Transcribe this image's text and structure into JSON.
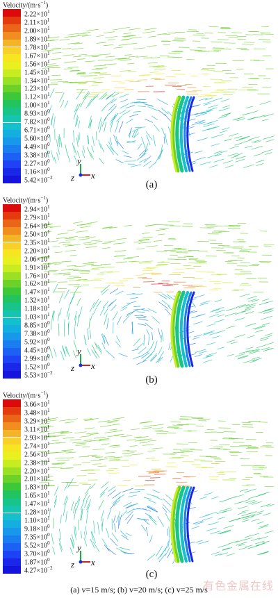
{
  "legend_title": {
    "text": "Velocity/(m·s",
    "sup": "−1",
    "close": ")"
  },
  "colormap": [
    "#dc0a0a",
    "#e43a10",
    "#ea6518",
    "#f08f20",
    "#f4b428",
    "#f8d02a",
    "#f6e622",
    "#e8f020",
    "#c8ec22",
    "#9ae024",
    "#6cd22a",
    "#3cc838",
    "#22c460",
    "#18c48a",
    "#16c4b0",
    "#14c0cc",
    "#14aee0",
    "#1898ea",
    "#1a7ef0",
    "#1c60f4",
    "#1e42f4",
    "#1a26e8",
    "#1414dc"
  ],
  "panels": [
    {
      "label": "(a)",
      "legend": [
        [
          "2.22",
          "1"
        ],
        [
          "2.11",
          "1"
        ],
        [
          "2.00",
          "1"
        ],
        [
          "1.89",
          "1"
        ],
        [
          "1.78",
          "1"
        ],
        [
          "1.67",
          "1"
        ],
        [
          "1.56",
          "1"
        ],
        [
          "1.45",
          "1"
        ],
        [
          "1.34",
          "1"
        ],
        [
          "1.23",
          "1"
        ],
        [
          "1.12",
          "1"
        ],
        [
          "1.00",
          "1"
        ],
        [
          "8.93",
          "0"
        ],
        [
          "7.82",
          "0"
        ],
        [
          "6.71",
          "0"
        ],
        [
          "5.60",
          "0"
        ],
        [
          "4.49",
          "0"
        ],
        [
          "3.38",
          "0"
        ],
        [
          "2.27",
          "0"
        ],
        [
          "1.16",
          "0"
        ],
        [
          "5.42",
          "−2"
        ]
      ]
    },
    {
      "label": "(b)",
      "legend": [
        [
          "2.94",
          "1"
        ],
        [
          "2.79",
          "1"
        ],
        [
          "2.64",
          "1"
        ],
        [
          "2.50",
          "1"
        ],
        [
          "2.35",
          "1"
        ],
        [
          "2.20",
          "1"
        ],
        [
          "2.06",
          "1"
        ],
        [
          "1.91",
          "1"
        ],
        [
          "1.76",
          "1"
        ],
        [
          "1.62",
          "1"
        ],
        [
          "1.47",
          "1"
        ],
        [
          "1.32",
          "1"
        ],
        [
          "1.18",
          "1"
        ],
        [
          "1.03",
          "1"
        ],
        [
          "8.85",
          "0"
        ],
        [
          "7.38",
          "0"
        ],
        [
          "5.92",
          "0"
        ],
        [
          "4.45",
          "0"
        ],
        [
          "2.99",
          "0"
        ],
        [
          "1.52",
          "0"
        ],
        [
          "5.53",
          "−2"
        ]
      ]
    },
    {
      "label": "(c)",
      "legend": [
        [
          "3.66",
          "1"
        ],
        [
          "3.48",
          "1"
        ],
        [
          "3.29",
          "1"
        ],
        [
          "3.11",
          "1"
        ],
        [
          "2.93",
          "1"
        ],
        [
          "2.74",
          "1"
        ],
        [
          "2.56",
          "1"
        ],
        [
          "2.38",
          "1"
        ],
        [
          "2.20",
          "1"
        ],
        [
          "2.01",
          "1"
        ],
        [
          "1.83",
          "1"
        ],
        [
          "1.65",
          "1"
        ],
        [
          "1.47",
          "1"
        ],
        [
          "1.28",
          "1"
        ],
        [
          "1.10",
          "1"
        ],
        [
          "9.18",
          "0"
        ],
        [
          "7.35",
          "0"
        ],
        [
          "5.52",
          "0"
        ],
        [
          "3.70",
          "0"
        ],
        [
          "1.87",
          "0"
        ],
        [
          "4.27",
          "−2"
        ]
      ]
    }
  ],
  "axes": {
    "y": "y",
    "z": "z",
    "x": "x"
  },
  "caption": "(a) v=15 m/s; (b) v=20 m/s; (c) v=25 m/s",
  "watermark": "有色金属在线"
}
